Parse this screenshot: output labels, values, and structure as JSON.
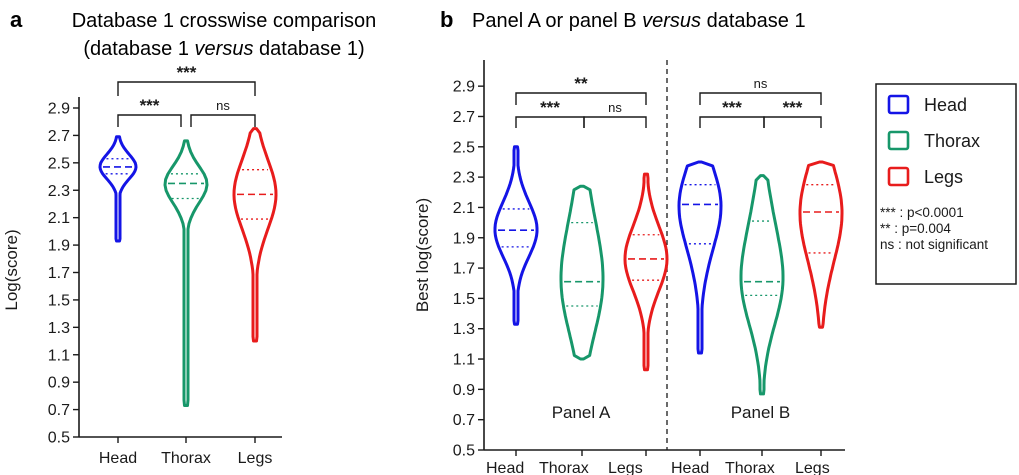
{
  "colors": {
    "head": "#1414e6",
    "thorax": "#17976a",
    "legs": "#e81c1c",
    "text": "#1a1a1a"
  },
  "figure": {
    "panel_a": {
      "letter": "a",
      "title_line1": "Database 1 crosswise comparison",
      "title_line2_pre": "(database 1 ",
      "title_line2_em": "versus",
      "title_line2_post": " database 1)"
    },
    "panel_b": {
      "letter": "b",
      "title_pre": "Panel A or panel B ",
      "title_em": "versus",
      "title_post": " database 1"
    }
  },
  "legend": {
    "items": [
      {
        "label": "Head",
        "color": "#1414e6"
      },
      {
        "label": "Thorax",
        "color": "#17976a"
      },
      {
        "label": "Legs",
        "color": "#e81c1c"
      }
    ],
    "notes": [
      "*** : p<0.0001",
      "** : p=0.004",
      "ns : not significant"
    ]
  },
  "chart_data": [
    {
      "type": "violin",
      "title": "Database 1 crosswise comparison (database 1 versus database 1)",
      "ylabel": "Log(score)",
      "ylim": [
        0.5,
        2.9
      ],
      "yticks": [
        "0.5",
        "0.7",
        "0.9",
        "1.1",
        "1.3",
        "1.5",
        "1.7",
        "1.9",
        "2.1",
        "2.3",
        "2.5",
        "2.7",
        "2.9"
      ],
      "categories": [
        "Head",
        "Thorax",
        "Legs"
      ],
      "series": [
        {
          "name": "Head",
          "min": 1.93,
          "max": 2.69,
          "q1": 2.42,
          "median": 2.47,
          "q3": 2.53
        },
        {
          "name": "Thorax",
          "min": 0.73,
          "max": 2.66,
          "q1": 2.24,
          "median": 2.35,
          "q3": 2.42
        },
        {
          "name": "Legs",
          "min": 1.2,
          "max": 2.75,
          "q1": 2.09,
          "median": 2.27,
          "q3": 2.45
        }
      ],
      "comparisons": [
        {
          "groups": [
            "Head",
            "Thorax"
          ],
          "label": "***"
        },
        {
          "groups": [
            "Thorax",
            "Legs"
          ],
          "label": "ns"
        },
        {
          "groups": [
            "Head",
            "Legs"
          ],
          "label": "***"
        }
      ]
    },
    {
      "type": "violin",
      "title": "Panel A or panel B versus database 1",
      "ylabel": "Best log(score)",
      "ylim": [
        0.5,
        3.0
      ],
      "yticks": [
        "0.5",
        "0.7",
        "0.9",
        "1.1",
        "1.3",
        "1.5",
        "1.7",
        "1.9",
        "2.1",
        "2.3",
        "2.5",
        "2.7",
        "2.9"
      ],
      "groups": [
        {
          "label": "Panel A",
          "categories": [
            "Head",
            "Thorax",
            "Legs"
          ],
          "series": [
            {
              "name": "Head",
              "min": 1.33,
              "max": 2.5,
              "q1": 1.84,
              "median": 1.95,
              "q3": 2.09
            },
            {
              "name": "Thorax",
              "min": 1.1,
              "max": 2.24,
              "q1": 1.45,
              "median": 1.61,
              "q3": 2.0
            },
            {
              "name": "Legs",
              "min": 1.03,
              "max": 2.32,
              "q1": 1.62,
              "median": 1.76,
              "q3": 1.92
            }
          ],
          "comparisons": [
            {
              "groups": [
                "Head",
                "Thorax"
              ],
              "label": "***"
            },
            {
              "groups": [
                "Thorax",
                "Legs"
              ],
              "label": "ns"
            },
            {
              "groups": [
                "Head",
                "Legs"
              ],
              "label": "**"
            }
          ]
        },
        {
          "label": "Panel B",
          "categories": [
            "Head",
            "Thorax",
            "Legs"
          ],
          "series": [
            {
              "name": "Head",
              "min": 1.14,
              "max": 2.4,
              "q1": 1.86,
              "median": 2.12,
              "q3": 2.25
            },
            {
              "name": "Thorax",
              "min": 0.87,
              "max": 2.31,
              "q1": 1.52,
              "median": 1.61,
              "q3": 2.01
            },
            {
              "name": "Legs",
              "min": 1.31,
              "max": 2.4,
              "q1": 1.8,
              "median": 2.07,
              "q3": 2.25
            }
          ],
          "comparisons": [
            {
              "groups": [
                "Head",
                "Thorax"
              ],
              "label": "***"
            },
            {
              "groups": [
                "Thorax",
                "Legs"
              ],
              "label": "***"
            },
            {
              "groups": [
                "Head",
                "Legs"
              ],
              "label": "ns"
            }
          ]
        }
      ]
    }
  ]
}
